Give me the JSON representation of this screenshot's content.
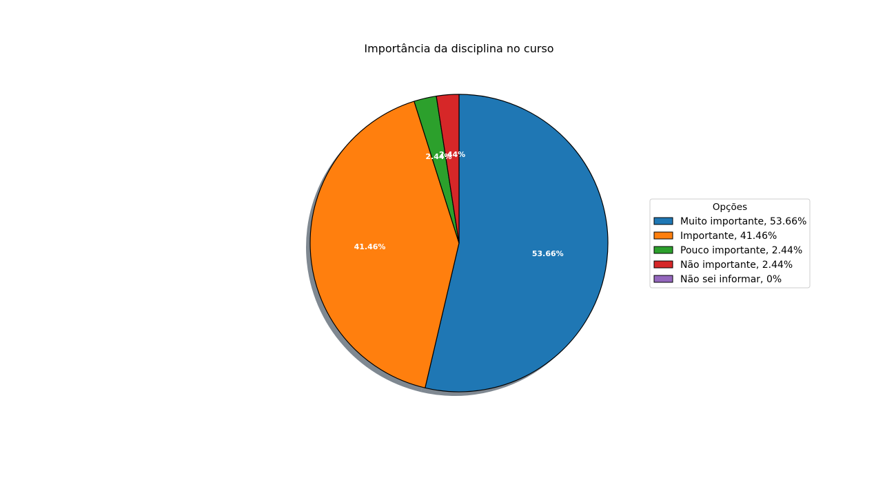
{
  "chart_data": {
    "type": "pie",
    "title": "Importância da disciplina no curso",
    "legend_title": "Opções",
    "legend_placement": "right",
    "shadow": true,
    "start_angle": 90,
    "direction": "clockwise",
    "slices": [
      {
        "name": "Muito importante",
        "value": 53.66,
        "color": "#1f77b4",
        "legend_label": "Muito importante, 53.66%",
        "pct_label": "53.66%"
      },
      {
        "name": "Importante",
        "value": 41.46,
        "color": "#ff7f0e",
        "legend_label": "Importante, 41.46%",
        "pct_label": "41.46%"
      },
      {
        "name": "Pouco importante",
        "value": 2.44,
        "color": "#2ca02c",
        "legend_label": "Pouco importante, 2.44%",
        "pct_label": "2.44%"
      },
      {
        "name": "Não importante",
        "value": 2.44,
        "color": "#d62728",
        "legend_label": "Não importante, 2.44%",
        "pct_label": "2.44%"
      },
      {
        "name": "Não sei informar",
        "value": 0,
        "color": "#9467bd",
        "legend_label": "Não sei informar, 0%",
        "pct_label": ""
      }
    ]
  }
}
